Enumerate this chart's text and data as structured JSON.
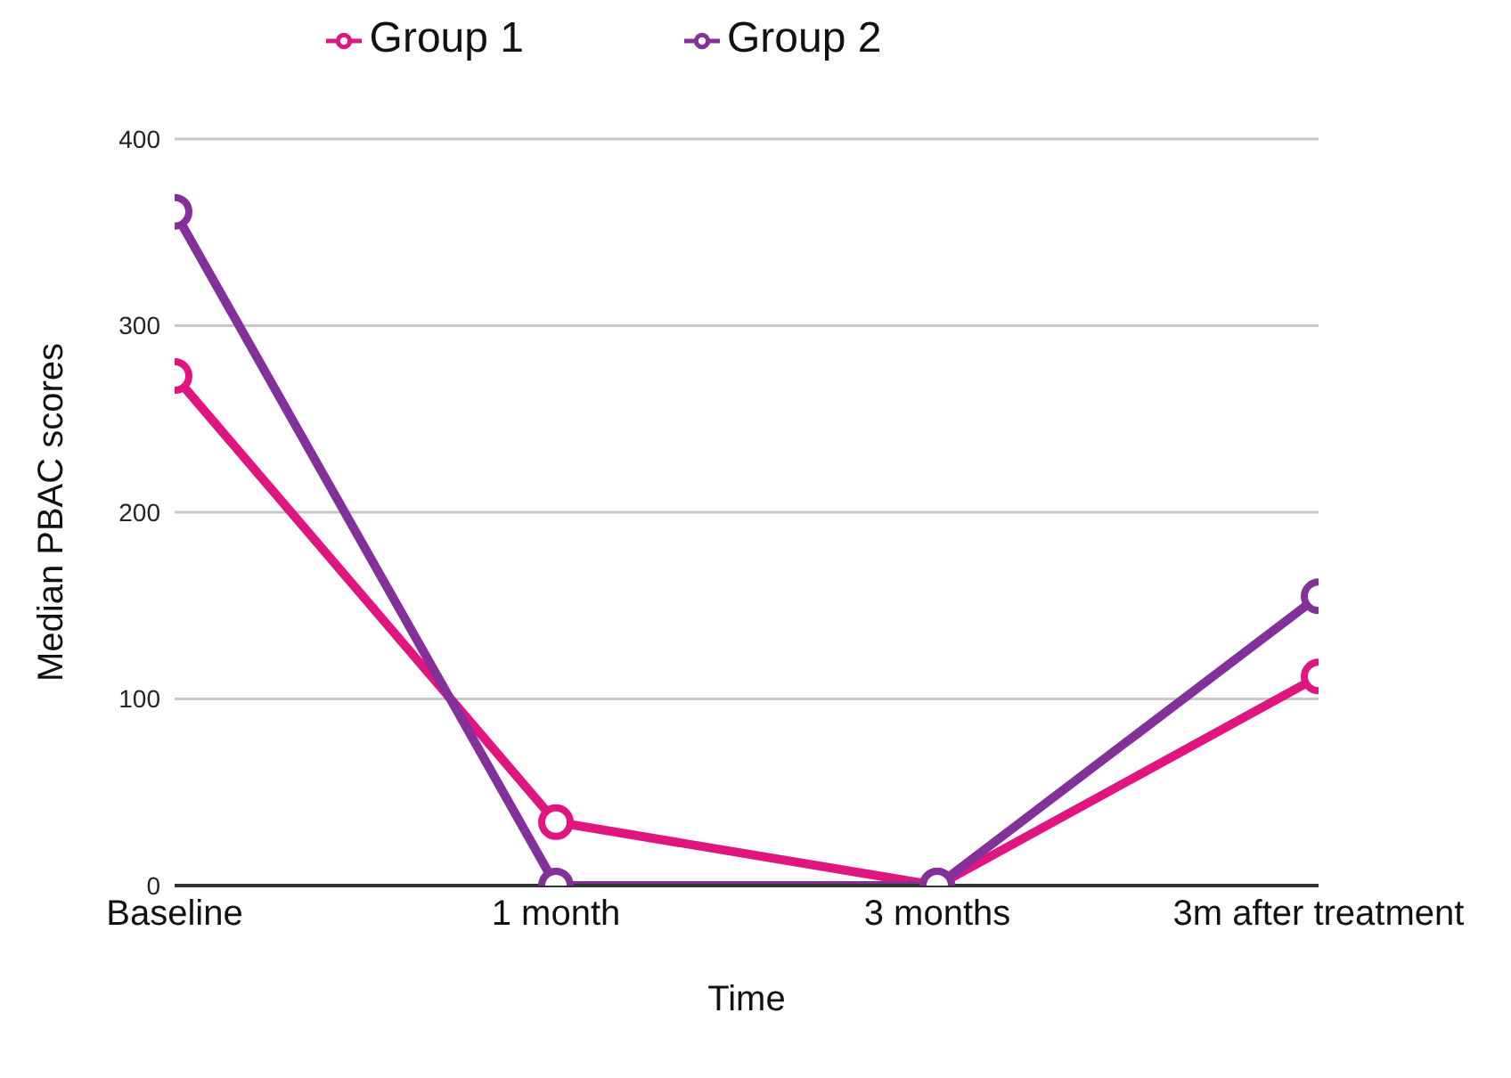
{
  "chart_data": {
    "type": "line",
    "xlabel": "Time",
    "ylabel": "Median PBAC scores",
    "categories": [
      "Baseline",
      "1 month",
      "3 months",
      "3m after treatment"
    ],
    "series": [
      {
        "name": "Group 1",
        "color": "#e0157f",
        "values": [
          273,
          34,
          0,
          112
        ]
      },
      {
        "name": "Group 2",
        "color": "#83309a",
        "values": [
          361,
          0,
          0,
          155
        ]
      }
    ],
    "ylim": [
      0,
      400
    ],
    "yticks": [
      0,
      100,
      200,
      300,
      400
    ],
    "grid": "y",
    "legend": "top",
    "marker": "circle",
    "line_style": "solid"
  }
}
